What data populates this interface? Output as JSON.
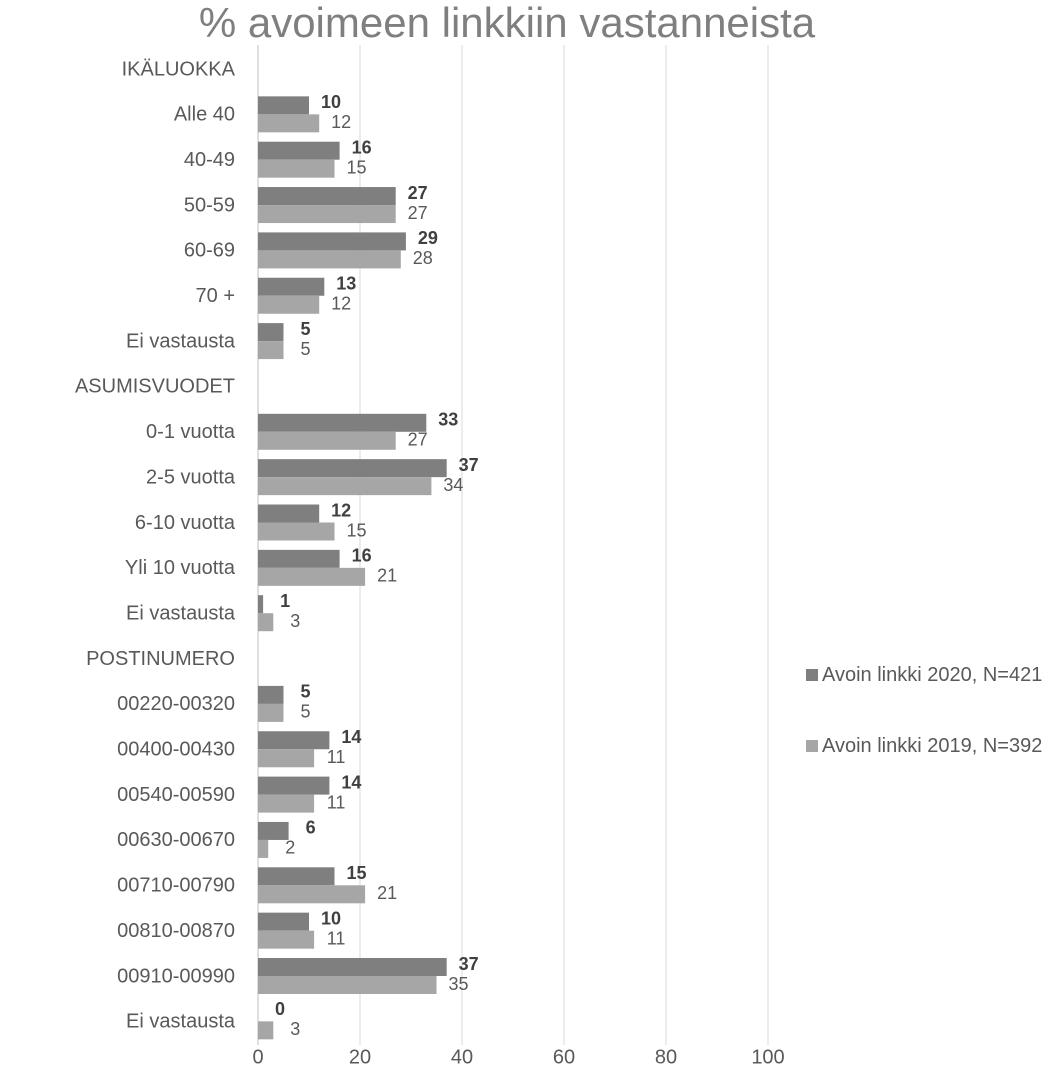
{
  "chart_data": {
    "type": "bar",
    "orientation": "horizontal",
    "title": "% avoimeen linkkiin vastanneista",
    "categories": [
      "IKÄLUOKKA",
      "Alle 40",
      "40-49",
      "50-59",
      "60-69",
      "70 +",
      "Ei vastausta",
      "ASUMISVUODET",
      "0-1 vuotta",
      "2-5 vuotta",
      "6-10 vuotta",
      "Yli 10 vuotta",
      "Ei vastausta",
      "POSTINUMERO",
      "00220-00320",
      "00400-00430",
      "00540-00590",
      "00630-00670",
      "00710-00790",
      "00810-00870",
      "00910-00990",
      "Ei vastausta"
    ],
    "series": [
      {
        "name": "Avoin linkki 2020, N=421",
        "color": "#7f7f7f",
        "values": [
          null,
          10,
          16,
          27,
          29,
          13,
          5,
          null,
          33,
          37,
          12,
          16,
          1,
          null,
          5,
          14,
          14,
          6,
          15,
          10,
          37,
          0
        ]
      },
      {
        "name": "Avoin linkki 2019, N=392",
        "color": "#a6a6a6",
        "values": [
          null,
          12,
          15,
          27,
          28,
          12,
          5,
          null,
          27,
          34,
          15,
          21,
          3,
          null,
          5,
          11,
          11,
          2,
          21,
          11,
          35,
          3
        ]
      }
    ],
    "xlim": [
      0,
      100
    ],
    "xticks": [
      0,
      20,
      40,
      60,
      80,
      100
    ],
    "grid": true,
    "legend": "right"
  }
}
